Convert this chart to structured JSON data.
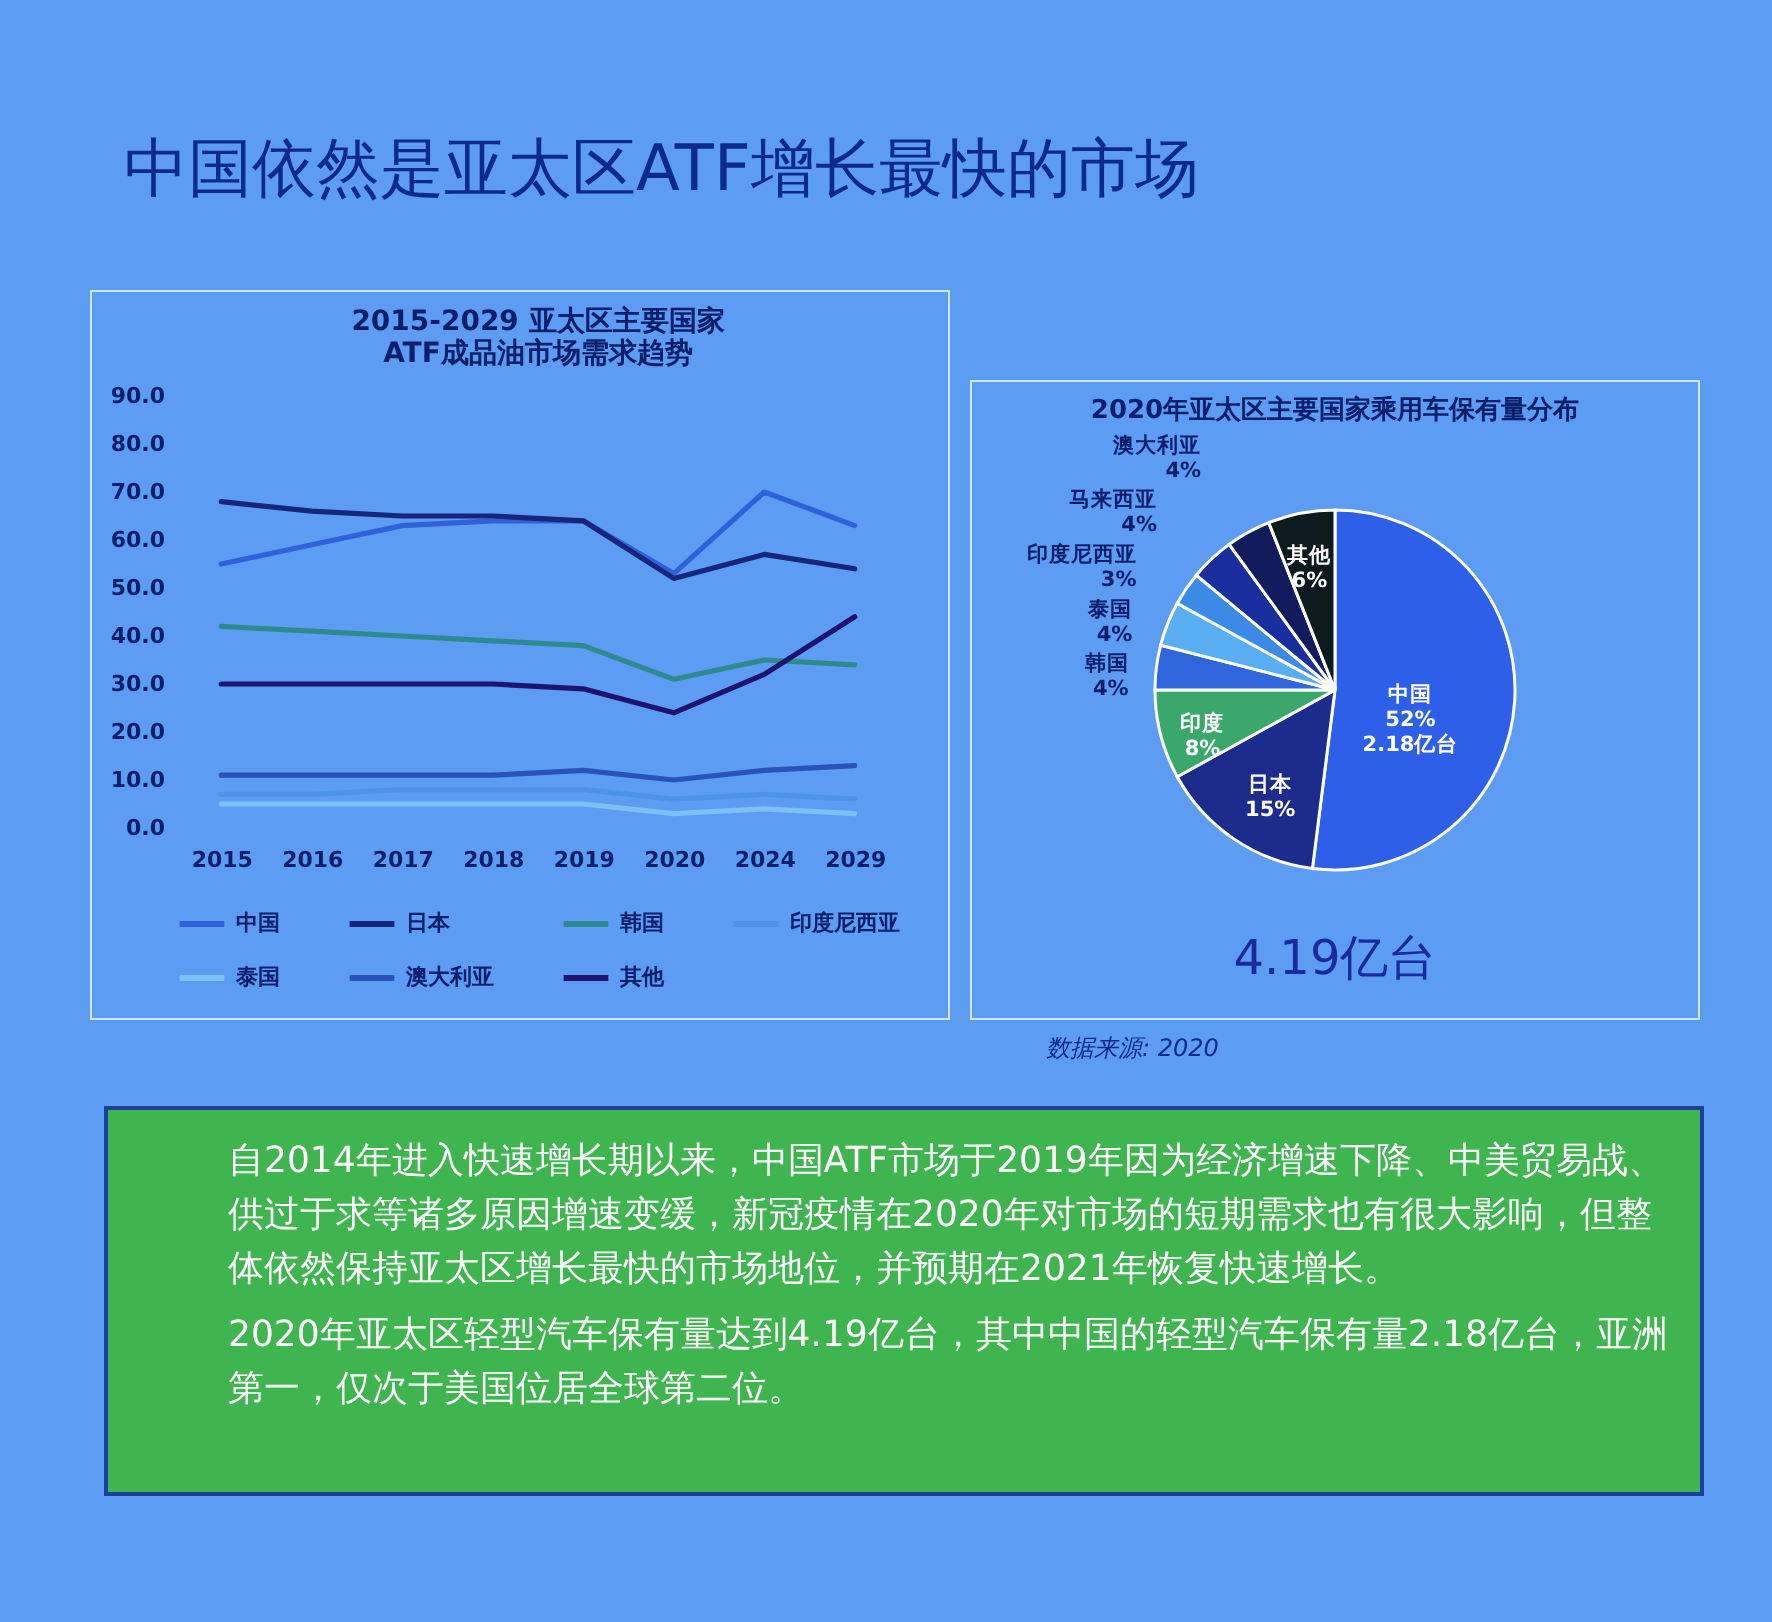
{
  "chart_data": [
    {
      "type": "other",
      "title": "中国依然是亚太区ATF增长最快的市场"
    },
    {
      "type": "line",
      "title": "2015-2029 亚太区主要国家\nATF成品油市场需求趋势",
      "categories": [
        "2015",
        "2016",
        "2017",
        "2018",
        "2019",
        "2020",
        "2024",
        "2029"
      ],
      "series": [
        {
          "name": "中国",
          "color": "#2f62d9",
          "values": [
            55,
            59,
            63,
            64,
            64,
            53,
            70,
            63
          ]
        },
        {
          "name": "日本",
          "color": "#17257a",
          "values": [
            68,
            66,
            65,
            65,
            64,
            52,
            57,
            54
          ]
        },
        {
          "name": "韩国",
          "color": "#2f8a8f",
          "values": [
            42,
            41,
            40,
            39,
            38,
            31,
            35,
            34
          ]
        },
        {
          "name": "印度尼西亚",
          "color": "#4d94e8",
          "values": [
            7,
            7,
            8,
            8,
            8,
            6,
            7,
            6
          ]
        },
        {
          "name": "泰国",
          "color": "#7cc0f4",
          "values": [
            5,
            5,
            5,
            5,
            5,
            3,
            4,
            3
          ]
        },
        {
          "name": "澳大利亚",
          "color": "#2a52b8",
          "values": [
            11,
            11,
            11,
            11,
            12,
            10,
            12,
            13
          ]
        },
        {
          "name": "其他",
          "color": "#1e1470",
          "values": [
            30,
            30,
            30,
            30,
            29,
            24,
            32,
            44
          ]
        }
      ],
      "ylim": [
        0,
        90
      ],
      "yticks": [
        {
          "value": 0,
          "label": "0.0"
        },
        {
          "value": 10,
          "label": "10.0"
        },
        {
          "value": 20,
          "label": "20.0"
        },
        {
          "value": 30,
          "label": "30.0"
        },
        {
          "value": 40,
          "label": "40.0"
        },
        {
          "value": 50,
          "label": "50.0"
        },
        {
          "value": 60,
          "label": "60.0"
        },
        {
          "value": 70,
          "label": "70.0"
        },
        {
          "value": 80,
          "label": "80.0"
        },
        {
          "value": 90,
          "label": "90.0"
        }
      ],
      "grid": false,
      "legend": "bottom"
    },
    {
      "type": "pie",
      "title": "2020年亚太区主要国家乘用车保有量分布",
      "categories": [
        "中国",
        "日本",
        "印度",
        "韩国",
        "泰国",
        "印度尼西亚",
        "马来西亚",
        "澳大利亚",
        "其他"
      ],
      "values": [
        52,
        15,
        8,
        4,
        4,
        3,
        4,
        4,
        6
      ],
      "colors": [
        "#2d5fe8",
        "#1c2b8c",
        "#3aa86a",
        "#2f66dd",
        "#58aef0",
        "#3b8be6",
        "#1a2f9e",
        "#121c5c",
        "#0e1b1e"
      ],
      "value_labels": [
        "52%\n2.18亿台",
        "15%",
        "8%",
        "4%",
        "4%",
        "3%",
        "4%",
        "4%",
        "6%"
      ],
      "annotations": [
        "4.19亿台",
        "数据来源: 2020"
      ]
    },
    {
      "type": "other",
      "annotations": [
        "自2014年进入快速增长期以来，中国ATF市场于2019年因为经济增速下降、中美贸易战、供过于求等诸多原因增速变缓，新冠疫情在2020年对市场的短期需求也有很大影响，但整体依然保持亚太区增长最快的市场地位，并预期在2021年恢复快速增长。",
        "2020年亚太区轻型汽车保有量达到4.19亿台，其中中国的轻型汽车保有量2.18亿台，亚洲第一，仅次于美国位居全球第二位。"
      ]
    }
  ]
}
